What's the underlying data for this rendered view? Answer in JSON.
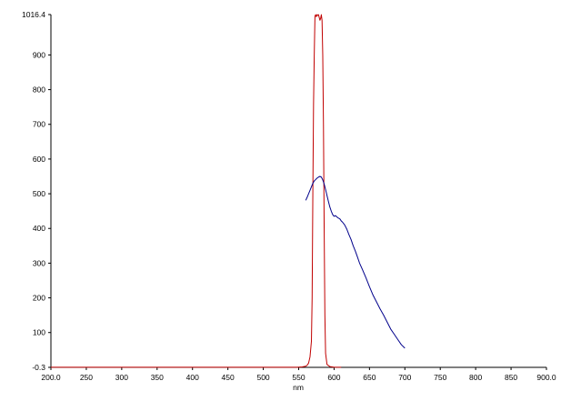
{
  "chart_data": {
    "type": "line",
    "title": "",
    "xlabel": "nm",
    "ylabel": "",
    "xlim": [
      200.0,
      900.0
    ],
    "ylim": [
      -0.3,
      1016.4
    ],
    "grid": false,
    "legend": "none",
    "x_tick_labels": [
      "200.0",
      "250",
      "300",
      "350",
      "400",
      "450",
      "500",
      "550",
      "600",
      "650",
      "700",
      "750",
      "800",
      "850",
      "900.0"
    ],
    "y_tick_labels": [
      "-0.3",
      "100",
      "200",
      "300",
      "400",
      "500",
      "600",
      "700",
      "800",
      "900",
      "1016.4"
    ],
    "series": [
      {
        "color": "#c00000",
        "x": [
          200,
          500,
          548,
          555,
          560,
          562,
          564,
          566,
          568,
          569,
          570,
          571,
          572,
          573,
          574,
          575,
          576,
          577,
          578,
          579,
          580,
          581,
          582,
          583,
          584,
          585,
          586,
          587,
          588,
          590,
          594,
          600,
          610
        ],
        "y": [
          0,
          0,
          0,
          1,
          3,
          6,
          12,
          30,
          75,
          200,
          500,
          760,
          900,
          1012,
          1016,
          1010,
          1016,
          1014,
          1016,
          1008,
          1000,
          1005,
          1016,
          1000,
          900,
          700,
          400,
          150,
          40,
          8,
          2,
          0,
          0
        ]
      },
      {
        "color": "#00008b",
        "x": [
          560,
          562,
          564,
          566,
          568,
          570,
          572,
          574,
          576,
          578,
          580,
          582,
          584,
          586,
          588,
          590,
          592,
          594,
          596,
          598,
          600,
          602,
          604,
          606,
          608,
          610,
          612,
          615,
          618,
          621,
          624,
          627,
          630,
          633,
          636,
          640,
          645,
          650,
          655,
          660,
          665,
          670,
          675,
          680,
          685,
          690,
          695,
          700
        ],
        "y": [
          481,
          490,
          500,
          510,
          520,
          530,
          537,
          541,
          545,
          548,
          550,
          548,
          540,
          528,
          512,
          495,
          478,
          462,
          450,
          440,
          435,
          437,
          433,
          430,
          428,
          422,
          418,
          410,
          398,
          382,
          368,
          350,
          335,
          318,
          300,
          282,
          258,
          232,
          208,
          188,
          168,
          150,
          130,
          110,
          95,
          80,
          65,
          55
        ]
      }
    ]
  }
}
